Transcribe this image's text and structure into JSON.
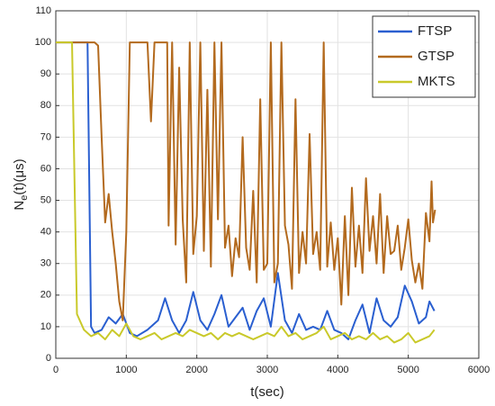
{
  "chart_data": {
    "type": "line",
    "xlabel": "t(sec)",
    "ylabel": {
      "base": "N",
      "sub": "e",
      "rest": "(t)(μs)"
    },
    "xlim": [
      0,
      6000
    ],
    "xticks": [
      0,
      1000,
      2000,
      3000,
      4000,
      5000,
      6000
    ],
    "ylim": [
      0,
      110
    ],
    "yticks": [
      0,
      10,
      20,
      30,
      40,
      50,
      60,
      70,
      80,
      90,
      100,
      110
    ],
    "grid": true,
    "legend": "upper right",
    "series": [
      {
        "name": "FTSP",
        "color": "#2a5fd0",
        "x": [
          0,
          450,
          500,
          550,
          650,
          750,
          850,
          950,
          1050,
          1150,
          1300,
          1450,
          1550,
          1650,
          1750,
          1850,
          1950,
          2050,
          2150,
          2250,
          2350,
          2450,
          2550,
          2650,
          2750,
          2850,
          2950,
          3050,
          3150,
          3250,
          3350,
          3450,
          3550,
          3650,
          3750,
          3850,
          3950,
          4050,
          4150,
          4250,
          4350,
          4450,
          4550,
          4650,
          4750,
          4850,
          4950,
          5050,
          5150,
          5250,
          5300,
          5370
        ],
        "values": [
          100,
          100,
          10,
          8,
          9,
          13,
          11,
          14,
          8,
          7,
          9,
          12,
          19,
          12,
          8,
          12,
          21,
          12,
          9,
          14,
          20,
          10,
          13,
          16,
          9,
          15,
          19,
          10,
          27,
          12,
          8,
          14,
          9,
          10,
          9,
          15,
          9,
          8,
          6,
          12,
          17,
          8,
          19,
          12,
          10,
          13,
          23,
          18,
          11,
          13,
          18,
          15
        ]
      },
      {
        "name": "GTSP",
        "color": "#b36a1e",
        "x": [
          0,
          550,
          600,
          650,
          700,
          750,
          800,
          850,
          900,
          950,
          1000,
          1050,
          1200,
          1300,
          1350,
          1400,
          1500,
          1580,
          1600,
          1650,
          1700,
          1750,
          1800,
          1850,
          1900,
          1950,
          2000,
          2050,
          2100,
          2150,
          2200,
          2250,
          2300,
          2350,
          2400,
          2450,
          2500,
          2550,
          2600,
          2650,
          2700,
          2750,
          2800,
          2850,
          2900,
          2950,
          3000,
          3050,
          3100,
          3150,
          3200,
          3250,
          3300,
          3350,
          3400,
          3450,
          3500,
          3550,
          3600,
          3650,
          3700,
          3750,
          3800,
          3850,
          3900,
          3950,
          4000,
          4050,
          4100,
          4150,
          4200,
          4250,
          4300,
          4350,
          4400,
          4450,
          4500,
          4550,
          4600,
          4650,
          4700,
          4750,
          4800,
          4850,
          4900,
          4950,
          5000,
          5050,
          5100,
          5150,
          5200,
          5250,
          5300,
          5330,
          5350,
          5380
        ],
        "values": [
          100,
          100,
          99,
          70,
          43,
          52,
          40,
          30,
          18,
          12,
          40,
          100,
          100,
          100,
          75,
          100,
          100,
          100,
          42,
          100,
          36,
          92,
          44,
          24,
          100,
          33,
          45,
          100,
          34,
          85,
          29,
          100,
          44,
          100,
          35,
          42,
          26,
          38,
          32,
          70,
          35,
          28,
          53,
          24,
          82,
          28,
          30,
          100,
          24,
          30,
          100,
          42,
          36,
          22,
          82,
          27,
          40,
          30,
          71,
          33,
          40,
          28,
          100,
          29,
          43,
          28,
          38,
          17,
          45,
          20,
          54,
          29,
          42,
          27,
          57,
          34,
          45,
          30,
          52,
          27,
          45,
          33,
          34,
          42,
          28,
          35,
          44,
          31,
          24,
          30,
          22,
          46,
          37,
          56,
          43,
          47
        ]
      },
      {
        "name": "MKTS",
        "color": "#c9c92a",
        "x": [
          0,
          230,
          300,
          400,
          500,
          600,
          700,
          800,
          900,
          1000,
          1100,
          1200,
          1300,
          1400,
          1500,
          1600,
          1700,
          1800,
          1900,
          2000,
          2100,
          2200,
          2300,
          2400,
          2500,
          2600,
          2700,
          2800,
          2900,
          3000,
          3100,
          3200,
          3300,
          3400,
          3500,
          3600,
          3700,
          3800,
          3900,
          4000,
          4100,
          4200,
          4300,
          4400,
          4500,
          4600,
          4700,
          4800,
          4900,
          5000,
          5100,
          5200,
          5300,
          5370
        ],
        "values": [
          100,
          100,
          14,
          9,
          7,
          8,
          6,
          9,
          7,
          11,
          7,
          6,
          7,
          8,
          6,
          7,
          8,
          7,
          9,
          8,
          7,
          8,
          6,
          8,
          7,
          8,
          7,
          6,
          7,
          8,
          7,
          10,
          7,
          8,
          6,
          7,
          8,
          10,
          6,
          7,
          8,
          6,
          7,
          6,
          8,
          6,
          7,
          5,
          6,
          8,
          5,
          6,
          7,
          9
        ]
      }
    ]
  }
}
